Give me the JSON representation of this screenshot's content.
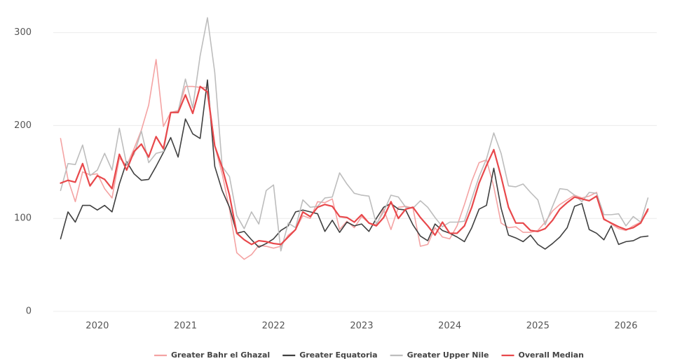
{
  "chart_data": {
    "type": "line",
    "x": [
      2019.583,
      2019.667,
      2019.75,
      2019.833,
      2019.917,
      2020,
      2020.083,
      2020.167,
      2020.25,
      2020.333,
      2020.417,
      2020.5,
      2020.583,
      2020.667,
      2020.75,
      2020.833,
      2020.917,
      2021,
      2021.083,
      2021.167,
      2021.25,
      2021.333,
      2021.417,
      2021.5,
      2021.583,
      2021.667,
      2021.75,
      2021.833,
      2021.917,
      2022,
      2022.083,
      2022.167,
      2022.25,
      2022.333,
      2022.417,
      2022.5,
      2022.583,
      2022.667,
      2022.75,
      2022.833,
      2022.917,
      2023,
      2023.083,
      2023.167,
      2023.25,
      2023.333,
      2023.417,
      2023.5,
      2023.583,
      2023.667,
      2023.75,
      2023.833,
      2023.917,
      2024,
      2024.083,
      2024.167,
      2024.25,
      2024.333,
      2024.417,
      2024.5,
      2024.583,
      2024.667,
      2024.75,
      2024.833,
      2024.917,
      2025,
      2025.083,
      2025.167,
      2025.25,
      2025.333,
      2025.417,
      2025.5,
      2025.583,
      2025.667,
      2025.75,
      2025.833,
      2025.917,
      2026,
      2026.083,
      2026.167,
      2026.25
    ],
    "series": [
      {
        "name": "Greater Bahr el Ghazal",
        "color": "#f4a3a3",
        "width": 1.6,
        "values": [
          186,
          142,
          118,
          150,
          147,
          148,
          132,
          122,
          165,
          157,
          175,
          195,
          222,
          271,
          199,
          214,
          216,
          242,
          242,
          241,
          241,
          178,
          148,
          110,
          63,
          56,
          61,
          71,
          70,
          68,
          70,
          82,
          88,
          103,
          100,
          118,
          117,
          121,
          88,
          97,
          90,
          102,
          95,
          93,
          110,
          88,
          112,
          113,
          111,
          70,
          72,
          90,
          80,
          78,
          92,
          115,
          140,
          160,
          163,
          134,
          95,
          90,
          91,
          85,
          85,
          87,
          96,
          108,
          115,
          120,
          125,
          122,
          124,
          128,
          100,
          94,
          89,
          87,
          92,
          96,
          108
        ]
      },
      {
        "name": "Greater Equatoria",
        "color": "#404040",
        "width": 1.6,
        "values": [
          78,
          107,
          96,
          114,
          114,
          109,
          114,
          107,
          137,
          161,
          148,
          141,
          142,
          156,
          171,
          187,
          166,
          207,
          191,
          186,
          249,
          156,
          130,
          112,
          84,
          86,
          77,
          69,
          73,
          78,
          87,
          92,
          107,
          109,
          107,
          105,
          86,
          98,
          85,
          96,
          92,
          94,
          86,
          100,
          112,
          116,
          110,
          109,
          93,
          81,
          76,
          94,
          87,
          84,
          80,
          75,
          90,
          110,
          114,
          154,
          111,
          82,
          79,
          75,
          82,
          72,
          67,
          73,
          80,
          90,
          113,
          116,
          88,
          84,
          77,
          92,
          72,
          75,
          76,
          80,
          81
        ]
      },
      {
        "name": "Greater Upper Nile",
        "color": "#bdbdbd",
        "width": 1.6,
        "values": [
          130,
          159,
          158,
          179,
          146,
          152,
          170,
          152,
          197,
          158,
          169,
          194,
          160,
          170,
          172,
          214,
          215,
          250,
          219,
          275,
          316,
          257,
          156,
          145,
          103,
          89,
          107,
          94,
          130,
          136,
          65,
          95,
          90,
          120,
          112,
          113,
          122,
          123,
          149,
          137,
          127,
          125,
          124,
          94,
          107,
          125,
          123,
          112,
          111,
          119,
          112,
          101,
          91,
          96,
          96,
          97,
          121,
          145,
          164,
          192,
          170,
          135,
          134,
          137,
          128,
          120,
          93,
          113,
          132,
          131,
          125,
          118,
          128,
          127,
          104,
          104,
          105,
          92,
          102,
          96,
          122
        ]
      },
      {
        "name": "Overall Median",
        "color": "#e8484b",
        "width": 2.2,
        "values": [
          138,
          141,
          139,
          159,
          135,
          146,
          142,
          132,
          169,
          152,
          172,
          180,
          166,
          188,
          175,
          214,
          214,
          233,
          213,
          242,
          236,
          178,
          155,
          125,
          84,
          77,
          72,
          76,
          75,
          73,
          72,
          80,
          88,
          107,
          102,
          112,
          115,
          113,
          102,
          101,
          96,
          104,
          95,
          92,
          101,
          118,
          100,
          110,
          112,
          101,
          92,
          82,
          96,
          84,
          84,
          92,
          112,
          138,
          157,
          174,
          145,
          112,
          95,
          95,
          87,
          86,
          89,
          98,
          110,
          117,
          123,
          121,
          119,
          124,
          99,
          95,
          91,
          88,
          90,
          95,
          110
        ]
      }
    ],
    "xlim": [
      2019.5,
      2026.35
    ],
    "xticks": [
      2020,
      2021,
      2022,
      2023,
      2024,
      2025,
      2026
    ],
    "ylim": [
      0,
      320
    ],
    "yticks": [
      0,
      100,
      200,
      300
    ],
    "grid": true,
    "legend": "bottom"
  }
}
